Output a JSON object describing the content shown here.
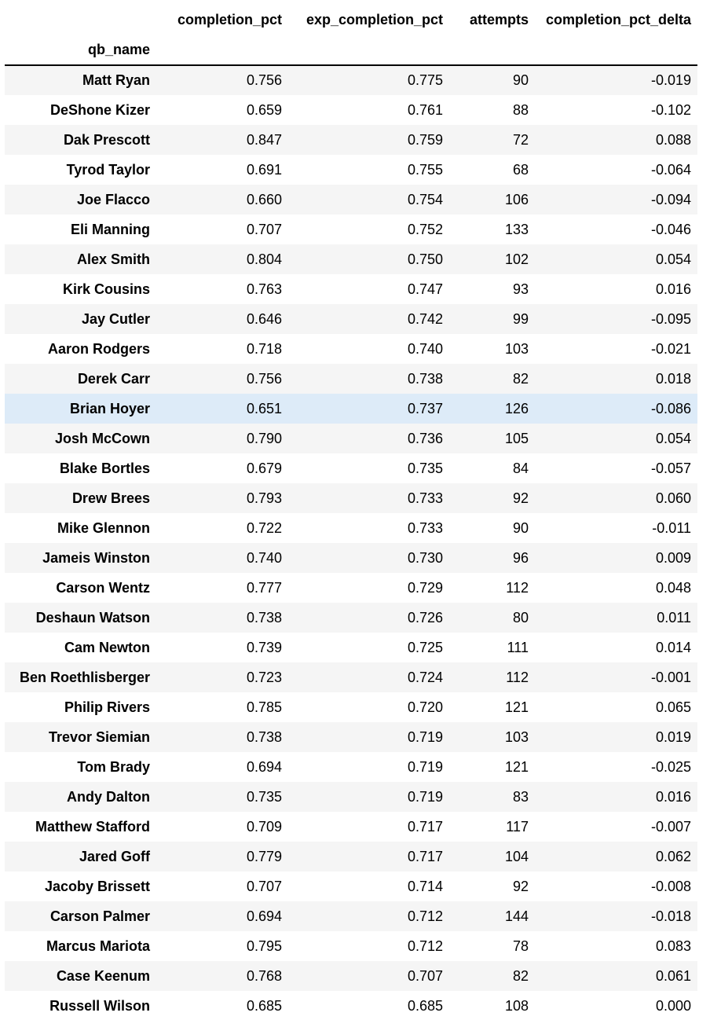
{
  "table": {
    "columns": [
      "completion_pct",
      "exp_completion_pct",
      "attempts",
      "completion_pct_delta"
    ],
    "index_name": "qb_name",
    "hovered_row": 11,
    "rows": [
      {
        "qb_name": "Matt Ryan",
        "completion_pct": "0.756",
        "exp_completion_pct": "0.775",
        "attempts": "90",
        "completion_pct_delta": "-0.019"
      },
      {
        "qb_name": "DeShone Kizer",
        "completion_pct": "0.659",
        "exp_completion_pct": "0.761",
        "attempts": "88",
        "completion_pct_delta": "-0.102"
      },
      {
        "qb_name": "Dak Prescott",
        "completion_pct": "0.847",
        "exp_completion_pct": "0.759",
        "attempts": "72",
        "completion_pct_delta": "0.088"
      },
      {
        "qb_name": "Tyrod Taylor",
        "completion_pct": "0.691",
        "exp_completion_pct": "0.755",
        "attempts": "68",
        "completion_pct_delta": "-0.064"
      },
      {
        "qb_name": "Joe Flacco",
        "completion_pct": "0.660",
        "exp_completion_pct": "0.754",
        "attempts": "106",
        "completion_pct_delta": "-0.094"
      },
      {
        "qb_name": "Eli Manning",
        "completion_pct": "0.707",
        "exp_completion_pct": "0.752",
        "attempts": "133",
        "completion_pct_delta": "-0.046"
      },
      {
        "qb_name": "Alex Smith",
        "completion_pct": "0.804",
        "exp_completion_pct": "0.750",
        "attempts": "102",
        "completion_pct_delta": "0.054"
      },
      {
        "qb_name": "Kirk Cousins",
        "completion_pct": "0.763",
        "exp_completion_pct": "0.747",
        "attempts": "93",
        "completion_pct_delta": "0.016"
      },
      {
        "qb_name": "Jay Cutler",
        "completion_pct": "0.646",
        "exp_completion_pct": "0.742",
        "attempts": "99",
        "completion_pct_delta": "-0.095"
      },
      {
        "qb_name": "Aaron Rodgers",
        "completion_pct": "0.718",
        "exp_completion_pct": "0.740",
        "attempts": "103",
        "completion_pct_delta": "-0.021"
      },
      {
        "qb_name": "Derek Carr",
        "completion_pct": "0.756",
        "exp_completion_pct": "0.738",
        "attempts": "82",
        "completion_pct_delta": "0.018"
      },
      {
        "qb_name": "Brian Hoyer",
        "completion_pct": "0.651",
        "exp_completion_pct": "0.737",
        "attempts": "126",
        "completion_pct_delta": "-0.086"
      },
      {
        "qb_name": "Josh McCown",
        "completion_pct": "0.790",
        "exp_completion_pct": "0.736",
        "attempts": "105",
        "completion_pct_delta": "0.054"
      },
      {
        "qb_name": "Blake Bortles",
        "completion_pct": "0.679",
        "exp_completion_pct": "0.735",
        "attempts": "84",
        "completion_pct_delta": "-0.057"
      },
      {
        "qb_name": "Drew Brees",
        "completion_pct": "0.793",
        "exp_completion_pct": "0.733",
        "attempts": "92",
        "completion_pct_delta": "0.060"
      },
      {
        "qb_name": "Mike Glennon",
        "completion_pct": "0.722",
        "exp_completion_pct": "0.733",
        "attempts": "90",
        "completion_pct_delta": "-0.011"
      },
      {
        "qb_name": "Jameis Winston",
        "completion_pct": "0.740",
        "exp_completion_pct": "0.730",
        "attempts": "96",
        "completion_pct_delta": "0.009"
      },
      {
        "qb_name": "Carson Wentz",
        "completion_pct": "0.777",
        "exp_completion_pct": "0.729",
        "attempts": "112",
        "completion_pct_delta": "0.048"
      },
      {
        "qb_name": "Deshaun Watson",
        "completion_pct": "0.738",
        "exp_completion_pct": "0.726",
        "attempts": "80",
        "completion_pct_delta": "0.011"
      },
      {
        "qb_name": "Cam Newton",
        "completion_pct": "0.739",
        "exp_completion_pct": "0.725",
        "attempts": "111",
        "completion_pct_delta": "0.014"
      },
      {
        "qb_name": "Ben Roethlisberger",
        "completion_pct": "0.723",
        "exp_completion_pct": "0.724",
        "attempts": "112",
        "completion_pct_delta": "-0.001"
      },
      {
        "qb_name": "Philip Rivers",
        "completion_pct": "0.785",
        "exp_completion_pct": "0.720",
        "attempts": "121",
        "completion_pct_delta": "0.065"
      },
      {
        "qb_name": "Trevor Siemian",
        "completion_pct": "0.738",
        "exp_completion_pct": "0.719",
        "attempts": "103",
        "completion_pct_delta": "0.019"
      },
      {
        "qb_name": "Tom Brady",
        "completion_pct": "0.694",
        "exp_completion_pct": "0.719",
        "attempts": "121",
        "completion_pct_delta": "-0.025"
      },
      {
        "qb_name": "Andy Dalton",
        "completion_pct": "0.735",
        "exp_completion_pct": "0.719",
        "attempts": "83",
        "completion_pct_delta": "0.016"
      },
      {
        "qb_name": "Matthew Stafford",
        "completion_pct": "0.709",
        "exp_completion_pct": "0.717",
        "attempts": "117",
        "completion_pct_delta": "-0.007"
      },
      {
        "qb_name": "Jared Goff",
        "completion_pct": "0.779",
        "exp_completion_pct": "0.717",
        "attempts": "104",
        "completion_pct_delta": "0.062"
      },
      {
        "qb_name": "Jacoby Brissett",
        "completion_pct": "0.707",
        "exp_completion_pct": "0.714",
        "attempts": "92",
        "completion_pct_delta": "-0.008"
      },
      {
        "qb_name": "Carson Palmer",
        "completion_pct": "0.694",
        "exp_completion_pct": "0.712",
        "attempts": "144",
        "completion_pct_delta": "-0.018"
      },
      {
        "qb_name": "Marcus Mariota",
        "completion_pct": "0.795",
        "exp_completion_pct": "0.712",
        "attempts": "78",
        "completion_pct_delta": "0.083"
      },
      {
        "qb_name": "Case Keenum",
        "completion_pct": "0.768",
        "exp_completion_pct": "0.707",
        "attempts": "82",
        "completion_pct_delta": "0.061"
      },
      {
        "qb_name": "Russell Wilson",
        "completion_pct": "0.685",
        "exp_completion_pct": "0.685",
        "attempts": "108",
        "completion_pct_delta": "0.000"
      }
    ]
  },
  "colors": {
    "row_odd": "#f5f5f5",
    "row_even": "#ffffff",
    "row_hover": "#ddebf8",
    "header_rule": "#000000"
  }
}
